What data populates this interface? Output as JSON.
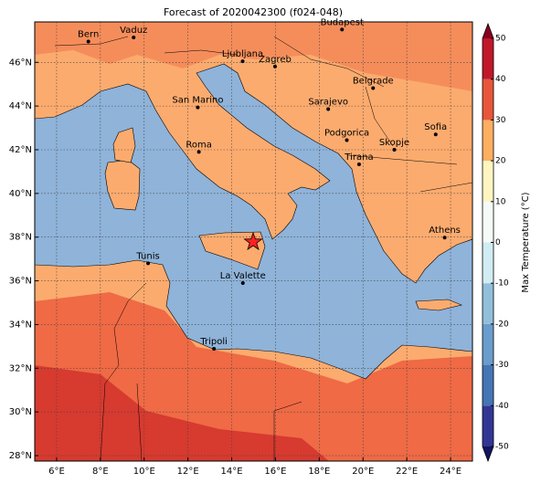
{
  "title": "Forecast of 2020042300 (f024-048)",
  "map": {
    "xlim": [
      5,
      25
    ],
    "ylim": [
      27.75,
      47.85
    ],
    "xticks": [
      {
        "value": 6,
        "label": "6°E"
      },
      {
        "value": 8,
        "label": "8°E"
      },
      {
        "value": 10,
        "label": "10°E"
      },
      {
        "value": 12,
        "label": "12°E"
      },
      {
        "value": 14,
        "label": "14°E"
      },
      {
        "value": 16,
        "label": "16°E"
      },
      {
        "value": 18,
        "label": "18°E"
      },
      {
        "value": 20,
        "label": "20°E"
      },
      {
        "value": 22,
        "label": "22°E"
      },
      {
        "value": 24,
        "label": "24°E"
      }
    ],
    "yticks": [
      {
        "value": 28,
        "label": "28°N"
      },
      {
        "value": 30,
        "label": "30°N"
      },
      {
        "value": 32,
        "label": "32°N"
      },
      {
        "value": 34,
        "label": "34°N"
      },
      {
        "value": 36,
        "label": "36°N"
      },
      {
        "value": 38,
        "label": "38°N"
      },
      {
        "value": 40,
        "label": "40°N"
      },
      {
        "value": 42,
        "label": "42°N"
      },
      {
        "value": 44,
        "label": "44°N"
      },
      {
        "value": 46,
        "label": "46°N"
      }
    ],
    "grid": true,
    "cities": [
      {
        "name": "Bern",
        "lon": 7.45,
        "lat": 46.95
      },
      {
        "name": "Vaduz",
        "lon": 9.52,
        "lat": 47.14
      },
      {
        "name": "Budapest",
        "lon": 19.04,
        "lat": 47.5
      },
      {
        "name": "Ljubljana",
        "lon": 14.5,
        "lat": 46.05
      },
      {
        "name": "Zagreb",
        "lon": 15.98,
        "lat": 45.81
      },
      {
        "name": "Belgrade",
        "lon": 20.46,
        "lat": 44.82
      },
      {
        "name": "San Marino",
        "lon": 12.45,
        "lat": 43.94
      },
      {
        "name": "Sarajevo",
        "lon": 18.41,
        "lat": 43.86
      },
      {
        "name": "Sofia",
        "lon": 23.32,
        "lat": 42.7
      },
      {
        "name": "Roma",
        "lon": 12.5,
        "lat": 41.9
      },
      {
        "name": "Podgorica",
        "lon": 19.26,
        "lat": 42.44
      },
      {
        "name": "Skopje",
        "lon": 21.43,
        "lat": 42.0
      },
      {
        "name": "Tirana",
        "lon": 19.82,
        "lat": 41.33
      },
      {
        "name": "Athens",
        "lon": 23.73,
        "lat": 37.98
      },
      {
        "name": "Tunis",
        "lon": 10.18,
        "lat": 36.8
      },
      {
        "name": "La Valette",
        "lon": 14.51,
        "lat": 35.9
      },
      {
        "name": "Tripoli",
        "lon": 13.19,
        "lat": 32.89
      }
    ],
    "marker": {
      "lon": 14.98,
      "lat": 37.78,
      "color": "#ff2020"
    }
  },
  "colorbar": {
    "label": "Max Temperature (°C)",
    "ticks": [
      -50,
      -40,
      -30,
      -20,
      -10,
      0,
      10,
      20,
      30,
      40,
      50
    ],
    "colors": [
      "#313695",
      "#4575b4",
      "#6a9ccd",
      "#91bfdb",
      "#d1ecf3",
      "#f5fbf7",
      "#fff5c0",
      "#fdae61",
      "#e8553a",
      "#c0182a"
    ],
    "extend_colors": [
      "#141460",
      "#8b0020"
    ]
  }
}
